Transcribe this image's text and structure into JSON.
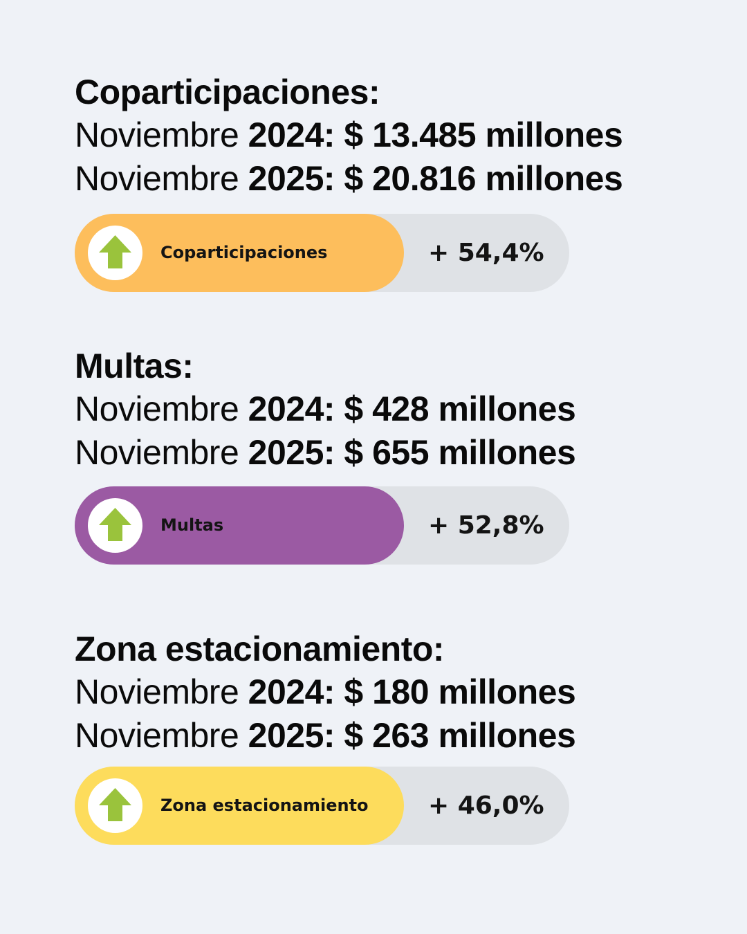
{
  "colors": {
    "background": "#eff2f7",
    "track": "#dfe2e6",
    "arrow": "#9ac33c"
  },
  "sections": [
    {
      "title": "Coparticipaciones:",
      "row1": {
        "label": "Noviembre",
        "value": "2024: $ 13.485 millones"
      },
      "row2": {
        "label": "Noviembre",
        "value": "2025: $ 20.816 millones"
      },
      "pill": {
        "label": "Coparticipaciones",
        "change": "+ 54,4%",
        "color": "#fdbe5c",
        "icon": "up-arrow-icon"
      }
    },
    {
      "title": "Multas:",
      "row1": {
        "label": "Noviembre",
        "value": "2024: $ 428 millones"
      },
      "row2": {
        "label": "Noviembre",
        "value": "2025: $ 655 millones"
      },
      "pill": {
        "label": "Multas",
        "change": "+ 52,8%",
        "color": "#9b5aa3",
        "icon": "up-arrow-icon"
      }
    },
    {
      "title": "Zona estacionamiento:",
      "row1": {
        "label": "Noviembre",
        "value": "2024: $ 180 millones"
      },
      "row2": {
        "label": "Noviembre",
        "value": "2025: $ 263 millones"
      },
      "pill": {
        "label": "Zona estacionamiento",
        "change": "+ 46,0%",
        "color": "#fddc5c",
        "icon": "up-arrow-icon"
      }
    }
  ]
}
